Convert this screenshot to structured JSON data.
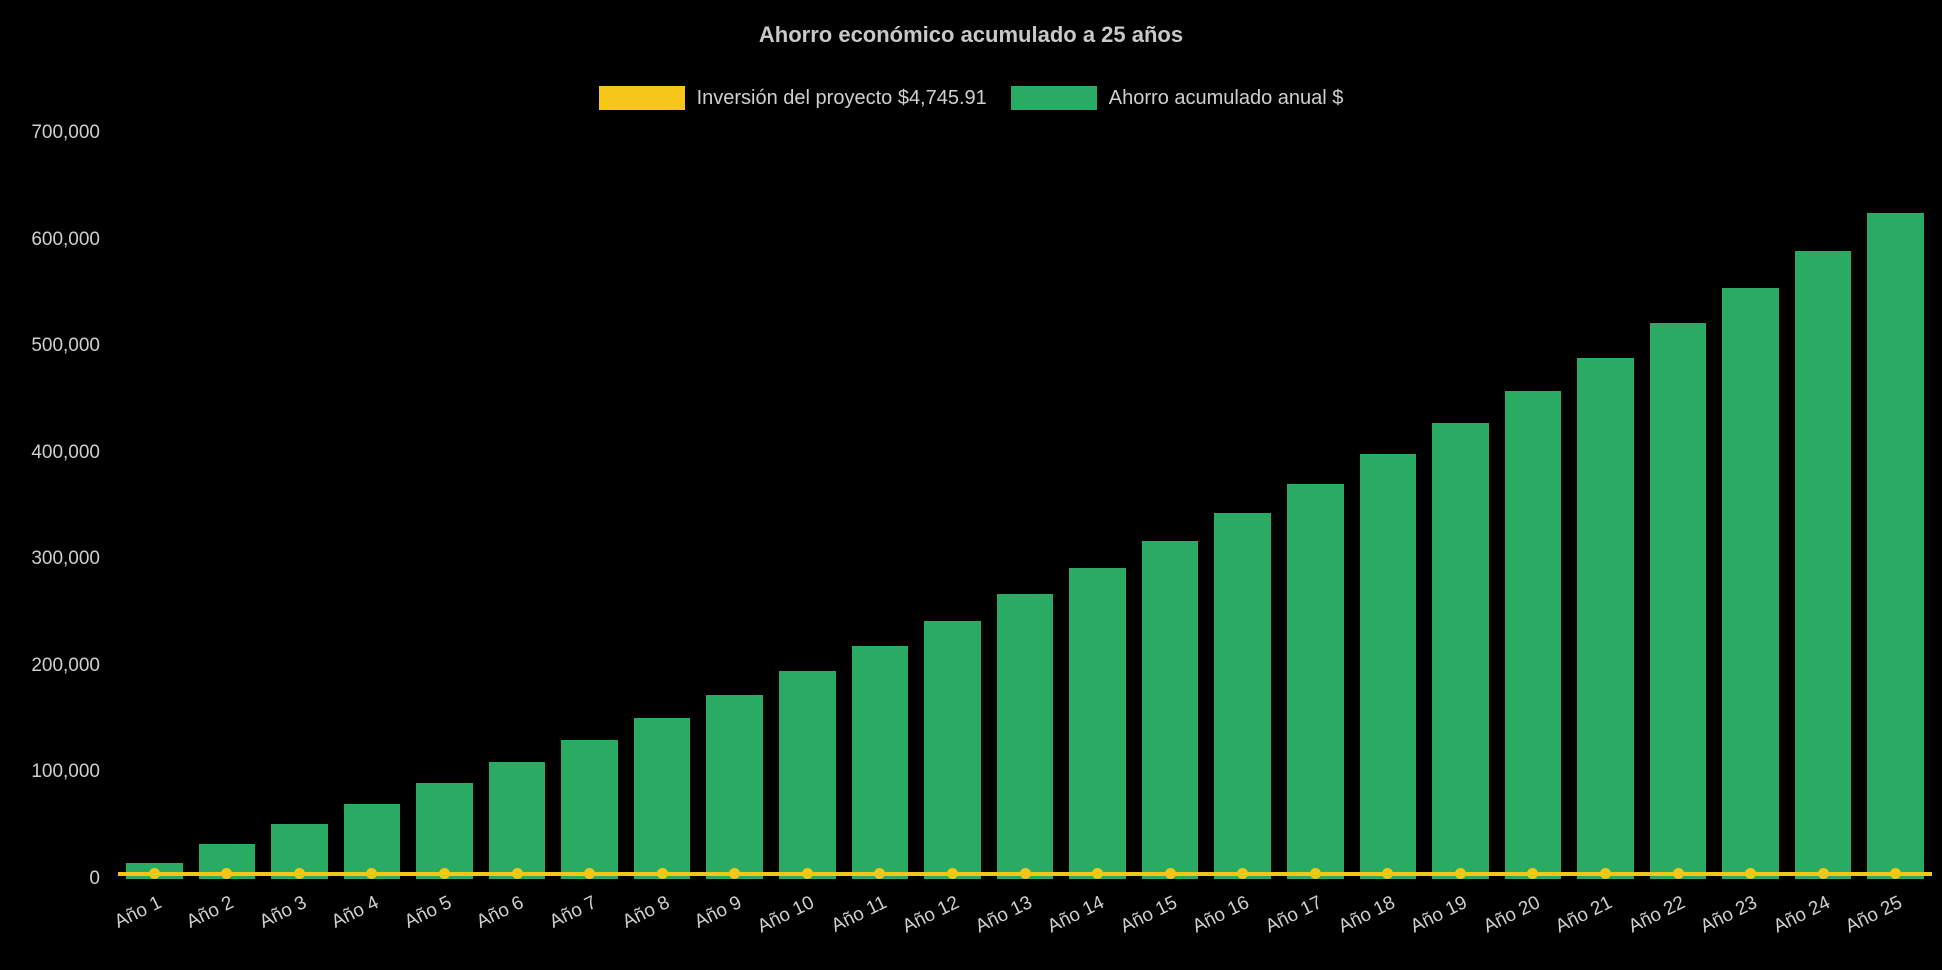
{
  "chart_data": {
    "type": "bar",
    "title": "Ahorro económico acumulado a 25 años",
    "categories": [
      "Año 1",
      "Año 2",
      "Año 3",
      "Año 4",
      "Año 5",
      "Año 6",
      "Año 7",
      "Año 8",
      "Año 9",
      "Año 10",
      "Año 11",
      "Año 12",
      "Año 13",
      "Año 14",
      "Año 15",
      "Año 16",
      "Año 17",
      "Año 18",
      "Año 19",
      "Año 20",
      "Año 21",
      "Año 22",
      "Año 23",
      "Año 24",
      "Año 25"
    ],
    "series": [
      {
        "name": "Inversión del proyecto $4,745.91",
        "type": "line",
        "color": "#f5c518",
        "constant_value": 4745.91
      },
      {
        "name": "Ahorro acumulado anual $",
        "type": "bar",
        "color": "#2aab63",
        "values": [
          15000,
          33000,
          51500,
          70500,
          90000,
          110000,
          130500,
          151500,
          173000,
          195500,
          218500,
          242500,
          267000,
          292000,
          317500,
          343500,
          370500,
          398500,
          427500,
          457500,
          489000,
          521500,
          555000,
          589500,
          624500
        ]
      }
    ],
    "xlabel": "",
    "ylabel": "",
    "ylim": [
      0,
      700000
    ],
    "yticks": [
      0,
      100000,
      200000,
      300000,
      400000,
      500000,
      600000,
      700000
    ],
    "grid": false,
    "legend_position": "top",
    "background_color": "#000000",
    "text_color": "#cfcfcf"
  }
}
